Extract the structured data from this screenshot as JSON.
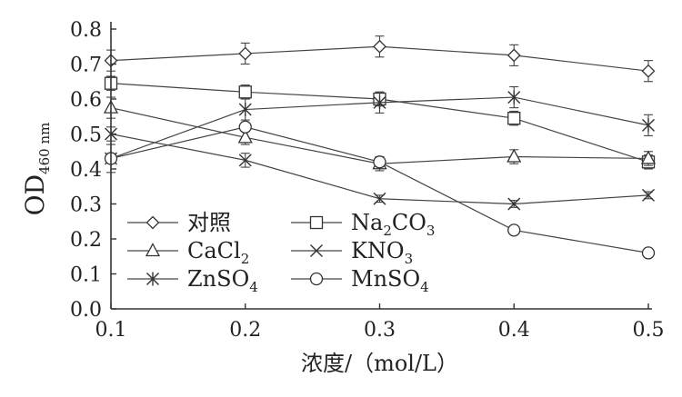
{
  "chart_data": {
    "type": "line",
    "xlabel": "浓度/（mol/L）",
    "ylabel": {
      "main": "OD",
      "sub": "460 nm"
    },
    "xlim": [
      0.1,
      0.5
    ],
    "ylim": [
      0.0,
      0.8
    ],
    "x_ticks": [
      "0.1",
      "0.2",
      "0.3",
      "0.4",
      "0.5"
    ],
    "y_ticks": [
      "0.0",
      "0.1",
      "0.2",
      "0.3",
      "0.4",
      "0.5",
      "0.6",
      "0.7",
      "0.8"
    ],
    "x": [
      0.1,
      0.2,
      0.3,
      0.4,
      0.5
    ],
    "grid": false,
    "legend_position": "bottom-left",
    "series": [
      {
        "name": "对照",
        "legend_main": "对照",
        "legend_sub": "",
        "marker": "diamond",
        "values": [
          0.71,
          0.73,
          0.75,
          0.725,
          0.68
        ],
        "errors": [
          0.03,
          0.03,
          0.03,
          0.03,
          0.03
        ]
      },
      {
        "name": "Na2CO3",
        "legend_main": "Na",
        "legend_sub": "2",
        "legend_tail": "CO",
        "legend_sub2": "3",
        "marker": "square",
        "values": [
          0.645,
          0.62,
          0.6,
          0.545,
          0.42
        ],
        "errors": [
          0.02,
          0.02,
          0.02,
          0.02,
          0.02
        ]
      },
      {
        "name": "CaCl2",
        "legend_main": "CaCl",
        "legend_sub": "2",
        "marker": "triangle",
        "values": [
          0.575,
          0.49,
          0.415,
          0.435,
          0.43
        ],
        "errors": [
          0.03,
          0.02,
          0.02,
          0.02,
          0.02
        ]
      },
      {
        "name": "KNO3",
        "legend_main": "KNO",
        "legend_sub": "3",
        "marker": "x",
        "values": [
          0.5,
          0.425,
          0.315,
          0.3,
          0.325
        ],
        "errors": [
          0.02,
          0.02,
          0.01,
          0.01,
          0.01
        ]
      },
      {
        "name": "ZnSO4",
        "legend_main": "ZnSO",
        "legend_sub": "4",
        "marker": "star",
        "values": [
          0.43,
          0.57,
          0.59,
          0.605,
          0.525
        ],
        "errors": [
          0.04,
          0.03,
          0.03,
          0.03,
          0.03
        ]
      },
      {
        "name": "MnSO4",
        "legend_main": "MnSO",
        "legend_sub": "4",
        "marker": "circle",
        "values": [
          0.43,
          0.52,
          0.42,
          0.225,
          0.16
        ],
        "errors": [
          0.01,
          0.01,
          0.01,
          0.01,
          0.01
        ]
      }
    ]
  }
}
